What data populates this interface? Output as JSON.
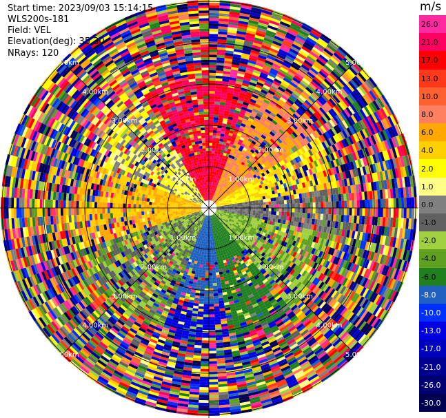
{
  "header": {
    "start_time": "Start time: 2023/09/03 15:14:15",
    "instrument": "WLS200s-181",
    "field": "Field: VEL",
    "elevation": "Elevation(deg): 35.30",
    "nrays": "NRays: 120"
  },
  "colorbar": {
    "unit": "m/s",
    "ticks": [
      "26.0",
      "21.0",
      "17.0",
      "13.0",
      "10.0",
      "8.0",
      "6.0",
      "4.0",
      "2.0",
      "1.0",
      "0.0",
      "-1.0",
      "-2.0",
      "-4.0",
      "-6.0",
      "-8.0",
      "-10.0",
      "-13.0",
      "-17.0",
      "-21.0",
      "-26.0",
      "-30.0"
    ],
    "colors": [
      "#ff2aa0",
      "#ff0060",
      "#ff0000",
      "#ff3a1a",
      "#ff6030",
      "#ff8060",
      "#ffa800",
      "#ffd000",
      "#ffff00",
      "#ffff88",
      "#808080",
      "#606060",
      "#a0d040",
      "#60a020",
      "#208020",
      "#2060c0",
      "#0030ff",
      "#0000e0",
      "#0000c0",
      "#000090",
      "#000070",
      "#000050"
    ]
  },
  "chart_data": {
    "type": "ppi",
    "field": "VEL",
    "units": "m/s",
    "nrays": 120,
    "range_rings_km": [
      "1.00km",
      "2.00km",
      "3.00km",
      "4.00km",
      "5.00km"
    ],
    "range_ring_values_km": [
      1,
      2,
      3,
      4,
      5
    ]
  }
}
